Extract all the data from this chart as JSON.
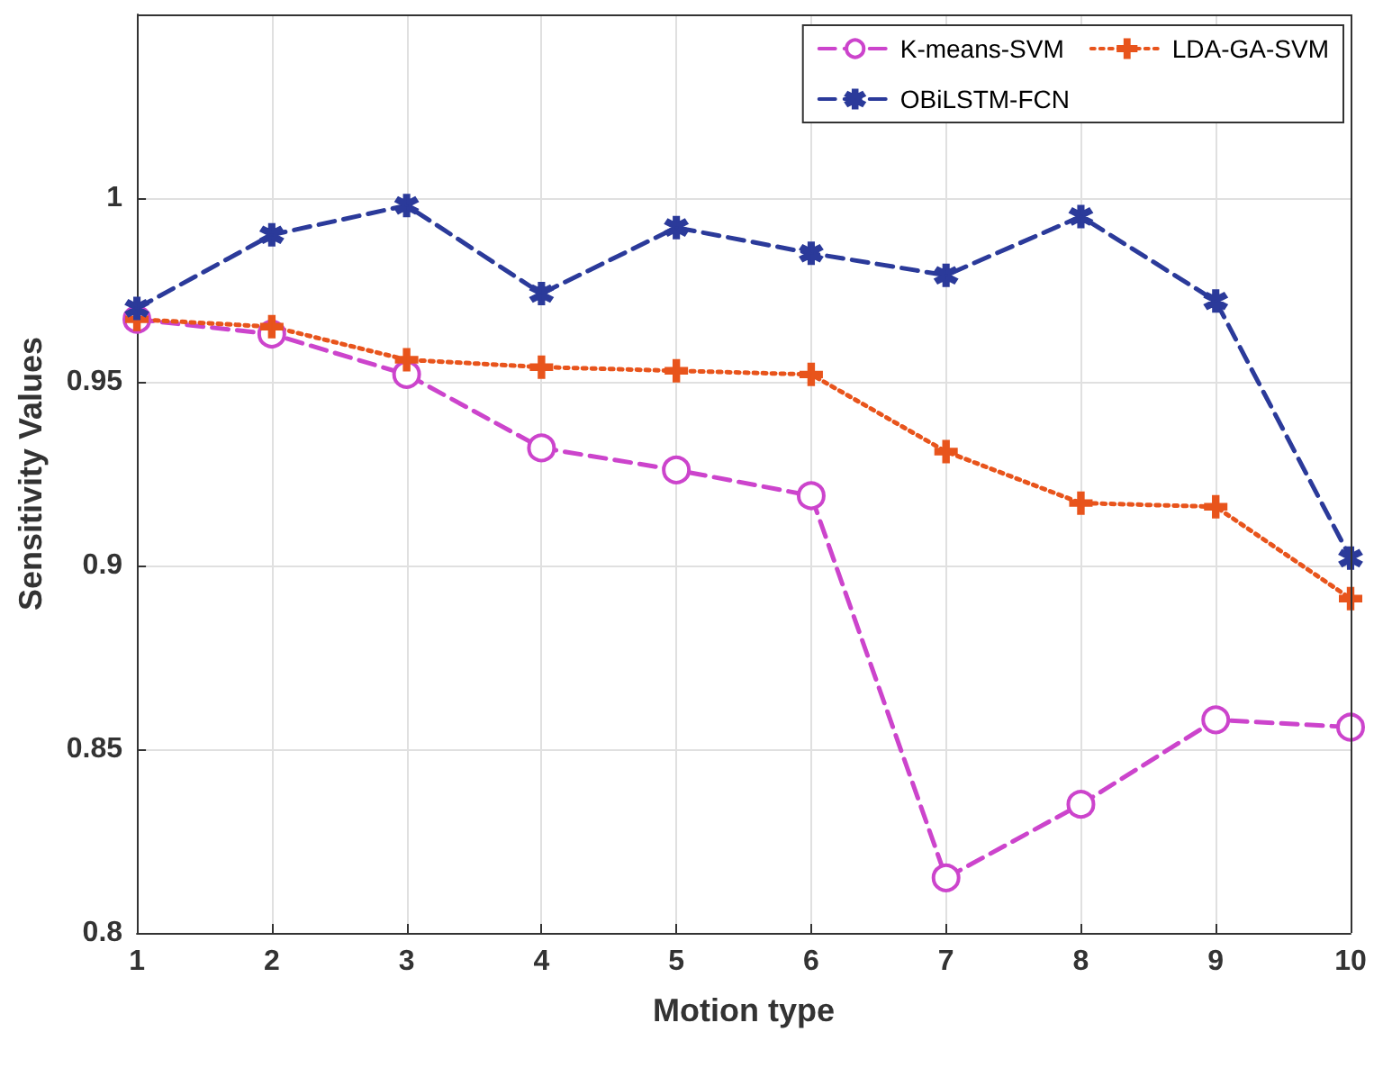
{
  "chart_data": {
    "type": "line",
    "xlabel": "Motion type",
    "ylabel": "Sensitivity Values",
    "x": [
      1,
      2,
      3,
      4,
      5,
      6,
      7,
      8,
      9,
      10
    ],
    "xlim": [
      1,
      10
    ],
    "xticks": [
      1,
      2,
      3,
      4,
      5,
      6,
      7,
      8,
      9,
      10
    ],
    "ylim": [
      0.8,
      1.05
    ],
    "yticks": [
      0.8,
      0.85,
      0.9,
      0.95,
      1
    ],
    "grid": true,
    "legend": "top right",
    "series": [
      {
        "name": "K-means-SVM",
        "color": "#cc44cc",
        "marker": "circle",
        "line_style": "dashed",
        "values": [
          0.967,
          0.963,
          0.952,
          0.932,
          0.926,
          0.919,
          0.815,
          0.835,
          0.858,
          0.856
        ]
      },
      {
        "name": "LDA-GA-SVM",
        "color": "#e8541c",
        "marker": "cross",
        "line_style": "dotted",
        "values": [
          0.967,
          0.965,
          0.956,
          0.954,
          0.953,
          0.952,
          0.931,
          0.917,
          0.916,
          0.891
        ]
      },
      {
        "name": "OBiLSTM-FCN",
        "color": "#2b3a9a",
        "marker": "star",
        "line_style": "dashed",
        "values": [
          0.97,
          0.99,
          0.998,
          0.974,
          0.992,
          0.985,
          0.979,
          0.995,
          0.972,
          0.902
        ]
      }
    ]
  }
}
